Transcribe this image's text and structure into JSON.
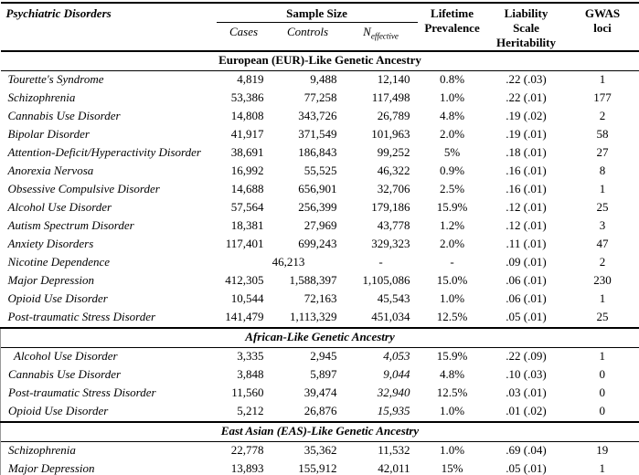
{
  "table": {
    "header": {
      "disorders": "Psychiatric Disorders",
      "sample_size": "Sample Size",
      "cases": "Cases",
      "controls": "Controls",
      "n_effective_n": "N",
      "n_effective_sub": "effective",
      "prevalence": "Lifetime Prevalence",
      "heritability": "Liability Scale Heritability",
      "gwas": "GWAS loci"
    },
    "sections": [
      {
        "title": "European (EUR)-Like Genetic Ancestry",
        "italic": false,
        "boxed": false,
        "rows": [
          {
            "disorder": "Tourette's Syndrome",
            "cases": "4,819",
            "controls": "9,488",
            "n_effective": "12,140",
            "prevalence": "0.8%",
            "heritability": ".22 (.03)",
            "gwas_loci": "1"
          },
          {
            "disorder": "Schizophrenia",
            "cases": "53,386",
            "controls": "77,258",
            "n_effective": "117,498",
            "prevalence": "1.0%",
            "heritability": ".22 (.01)",
            "gwas_loci": "177"
          },
          {
            "disorder": "Cannabis Use Disorder",
            "cases": "14,808",
            "controls": "343,726",
            "n_effective": "26,789",
            "prevalence": "4.8%",
            "heritability": ".19 (.02)",
            "gwas_loci": "2"
          },
          {
            "disorder": "Bipolar Disorder",
            "cases": "41,917",
            "controls": "371,549",
            "n_effective": "101,963",
            "prevalence": "2.0%",
            "heritability": ".19 (.01)",
            "gwas_loci": "58"
          },
          {
            "disorder": "Attention-Deficit/Hyperactivity Disorder",
            "cases": "38,691",
            "controls": "186,843",
            "n_effective": "99,252",
            "prevalence": "5%",
            "heritability": ".18 (.01)",
            "gwas_loci": "27"
          },
          {
            "disorder": "Anorexia Nervosa",
            "cases": "16,992",
            "controls": "55,525",
            "n_effective": "46,322",
            "prevalence": "0.9%",
            "heritability": ".16 (.01)",
            "gwas_loci": "8"
          },
          {
            "disorder": "Obsessive Compulsive Disorder",
            "cases": "14,688",
            "controls": "656,901",
            "n_effective": "32,706",
            "prevalence": "2.5%",
            "heritability": ".16 (.01)",
            "gwas_loci": "1"
          },
          {
            "disorder": "Alcohol Use Disorder",
            "cases": "57,564",
            "controls": "256,399",
            "n_effective": "179,186",
            "prevalence": "15.9%",
            "heritability": ".12 (.01)",
            "gwas_loci": "25"
          },
          {
            "disorder": "Autism Spectrum Disorder",
            "cases": "18,381",
            "controls": "27,969",
            "n_effective": "43,778",
            "prevalence": "1.2%",
            "heritability": ".12 (.01)",
            "gwas_loci": "3"
          },
          {
            "disorder": "Anxiety Disorders",
            "cases": "117,401",
            "controls": "699,243",
            "n_effective": "329,323",
            "prevalence": "2.0%",
            "heritability": ".11 (.01)",
            "gwas_loci": "47"
          },
          {
            "disorder": "Nicotine Dependence",
            "cases_controls_combined": "46,213",
            "n_effective": "-",
            "prevalence": "-",
            "heritability": ".09 (.01)",
            "gwas_loci": "2"
          },
          {
            "disorder": "Major Depression",
            "cases": "412,305",
            "controls": "1,588,397",
            "n_effective": "1,105,086",
            "prevalence": "15.0%",
            "heritability": ".06 (.01)",
            "gwas_loci": "230"
          },
          {
            "disorder": "Opioid Use Disorder",
            "cases": "10,544",
            "controls": "72,163",
            "n_effective": "45,543",
            "prevalence": "1.0%",
            "heritability": ".06 (.01)",
            "gwas_loci": "1"
          },
          {
            "disorder": "Post-traumatic Stress Disorder",
            "cases": "141,479",
            "controls": "1,113,329",
            "n_effective": "451,034",
            "prevalence": "12.5%",
            "heritability": ".05 (.01)",
            "gwas_loci": "25"
          }
        ]
      },
      {
        "title": "African-Like Genetic Ancestry",
        "italic": true,
        "neff_italic": true,
        "boxed": true,
        "rows": [
          {
            "disorder": "Alcohol Use Disorder",
            "indent": true,
            "cases": "3,335",
            "controls": "2,945",
            "n_effective": "4,053",
            "prevalence": "15.9%",
            "heritability": ".22 (.09)",
            "gwas_loci": "1"
          },
          {
            "disorder": "Cannabis Use Disorder",
            "cases": "3,848",
            "controls": "5,897",
            "n_effective": "9,044",
            "prevalence": "4.8%",
            "heritability": ".10 (.03)",
            "gwas_loci": "0"
          },
          {
            "disorder": "Post-traumatic Stress Disorder",
            "cases": "11,560",
            "controls": "39,474",
            "n_effective": "32,940",
            "prevalence": "12.5%",
            "heritability": ".03 (.01)",
            "gwas_loci": "0"
          },
          {
            "disorder": "Opioid Use Disorder",
            "cases": "5,212",
            "controls": "26,876",
            "n_effective": "15,935",
            "prevalence": "1.0%",
            "heritability": ".01 (.02)",
            "gwas_loci": "0"
          }
        ]
      },
      {
        "title": "East Asian (EAS)-Like Genetic Ancestry",
        "italic": true,
        "boxed": true,
        "rows": [
          {
            "disorder": "Schizophrenia",
            "cases": "22,778",
            "controls": "35,362",
            "n_effective": "11,532",
            "prevalence": "1.0%",
            "heritability": ".69 (.04)",
            "gwas_loci": "19"
          },
          {
            "disorder": "Major Depression",
            "cases": "13,893",
            "controls": "155,912",
            "n_effective": "42,011",
            "prevalence": "15%",
            "heritability": ".05 (.01)",
            "gwas_loci": "1"
          }
        ]
      }
    ]
  }
}
